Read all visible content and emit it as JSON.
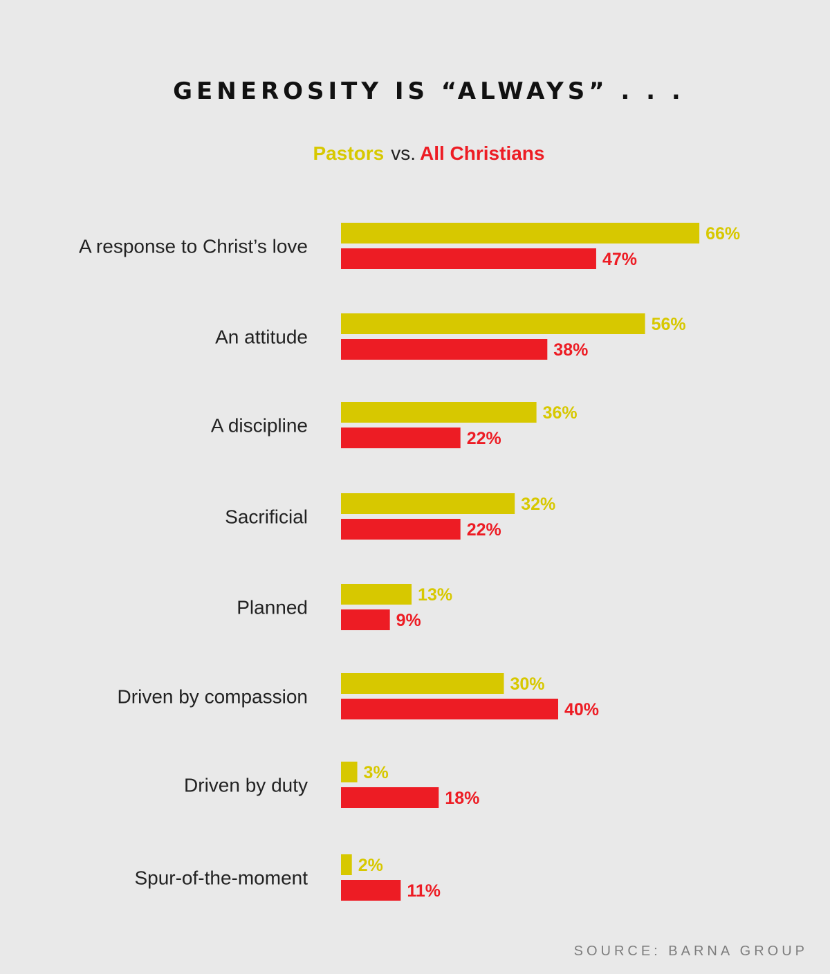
{
  "title": "GENEROSITY IS “ALWAYS” . . .",
  "legend": {
    "series1": "Pastors",
    "connector": "vs.",
    "series2": "All Christians"
  },
  "colors": {
    "pastors": "#d7c800",
    "all_christians": "#ed1c24",
    "background": "#e9e9e9",
    "label_text": "#222222"
  },
  "source": "SOURCE: BARNA GROUP",
  "chart_data": {
    "type": "bar",
    "orientation": "horizontal",
    "categories": [
      "A response to Christ’s love",
      "An attitude",
      "A discipline",
      "Sacrificial",
      "Planned",
      "Driven by compassion",
      "Driven by duty",
      "Spur-of-the-moment"
    ],
    "series": [
      {
        "name": "Pastors",
        "values": [
          66,
          56,
          36,
          32,
          13,
          30,
          3,
          2
        ],
        "color": "#d7c800"
      },
      {
        "name": "All Christians",
        "values": [
          47,
          38,
          22,
          22,
          9,
          40,
          18,
          11
        ],
        "color": "#ed1c24"
      }
    ],
    "value_suffix": "%",
    "title": "GENEROSITY IS “ALWAYS” . . .",
    "grid": false,
    "legend": "top"
  }
}
